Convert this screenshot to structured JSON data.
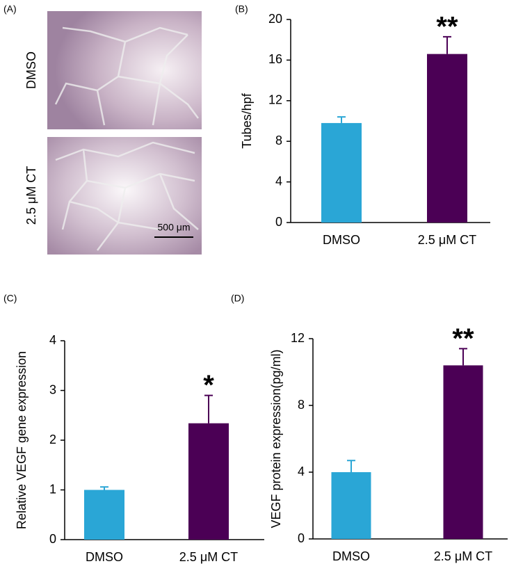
{
  "chart_data": [
    {
      "type": "image",
      "panel": "(A)",
      "labels": [
        "DMSO",
        "2.5 μM CT"
      ],
      "scale_bar": "500 μm"
    },
    {
      "type": "bar",
      "panel": "(B)",
      "y_label": "Tubes/hpf",
      "categories": [
        "DMSO",
        "2.5 μM CT"
      ],
      "values": [
        9.8,
        16.6
      ],
      "errors": [
        0.6,
        1.7
      ],
      "colors": [
        "#2aa6d6",
        "#4b0055"
      ],
      "significance": [
        null,
        "**"
      ],
      "ylim": [
        0,
        20
      ],
      "yticks": [
        0,
        4,
        8,
        12,
        16,
        20
      ]
    },
    {
      "type": "bar",
      "panel": "(C)",
      "y_label": "Relative VEGF gene expression",
      "categories": [
        "DMSO",
        "2.5 μM CT"
      ],
      "values": [
        1.0,
        2.34
      ],
      "errors": [
        0.06,
        0.56
      ],
      "colors": [
        "#2aa6d6",
        "#4b0055"
      ],
      "significance": [
        null,
        "*"
      ],
      "ylim": [
        0,
        4
      ],
      "yticks": [
        0,
        1,
        2,
        3,
        4
      ]
    },
    {
      "type": "bar",
      "panel": "(D)",
      "y_label": "VEGF protein expression(pg/ml)",
      "categories": [
        "DMSO",
        "2.5 μM CT"
      ],
      "values": [
        4.0,
        10.4
      ],
      "errors": [
        0.7,
        1.0
      ],
      "colors": [
        "#2aa6d6",
        "#4b0055"
      ],
      "significance": [
        null,
        "**"
      ],
      "ylim": [
        0,
        12
      ],
      "yticks": [
        0,
        4,
        8,
        12
      ]
    }
  ]
}
